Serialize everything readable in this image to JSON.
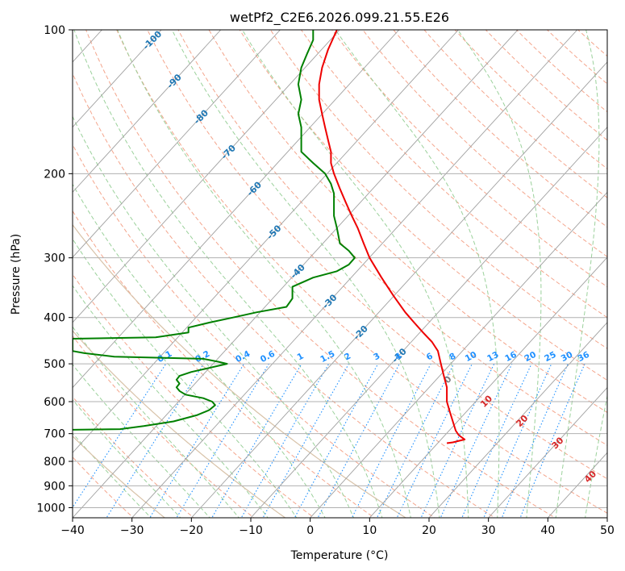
{
  "chart_data": {
    "type": "line",
    "title": "wetPf2_C2E6.2026.099.21.55.E26",
    "xlabel": "Temperature (°C)",
    "ylabel": "Pressure (hPa)",
    "xlim": [
      -40,
      50
    ],
    "ylim": [
      1050,
      100
    ],
    "y_scale": "log",
    "grid": true,
    "x_ticks": [
      -40,
      -30,
      -20,
      -10,
      0,
      10,
      20,
      30,
      40,
      50
    ],
    "x_tick_labels": [
      "−40",
      "−30",
      "−20",
      "−10",
      "0",
      "10",
      "20",
      "30",
      "40",
      "50"
    ],
    "y_ticks": [
      100,
      200,
      300,
      400,
      500,
      600,
      700,
      800,
      900,
      1000
    ],
    "y_tick_labels": [
      "100",
      "200",
      "300",
      "400",
      "500",
      "600",
      "700",
      "800",
      "900",
      "1000"
    ],
    "colors": {
      "temperature": "#ee0000",
      "dewpoint": "#008000",
      "isotherm": "#a0a0a0",
      "dry_adiabat": "#f4a58c",
      "moist_adiabat": "#9bd19b",
      "mixing_ratio": "#1e90ff",
      "isotherm_label": "#1f77b4",
      "moist_label": "#d62728",
      "theta_curve": "#d8c2a8"
    },
    "isotherm_labels": [
      "-100",
      "-90",
      "-80",
      "-70",
      "-60",
      "-50",
      "-40",
      "-30",
      "-20",
      "-10"
    ],
    "moist_adiabat_labels": [
      "0",
      "10",
      "20",
      "30",
      "40"
    ],
    "mixing_ratio_labels": [
      "0.1",
      "0.2",
      "0.4",
      "0.6",
      "1",
      "1.5",
      "2",
      "3",
      "4",
      "6",
      "8",
      "10",
      "13",
      "16",
      "20",
      "25",
      "30",
      "36"
    ],
    "series": [
      {
        "name": "Temperature",
        "points": [
          [
            4.5,
            100
          ],
          [
            3.0,
            110
          ],
          [
            2.0,
            120
          ],
          [
            1.5,
            130
          ],
          [
            1.5,
            140
          ],
          [
            2.0,
            150
          ],
          [
            2.5,
            160
          ],
          [
            3.0,
            170
          ],
          [
            3.5,
            180
          ],
          [
            3.5,
            190
          ],
          [
            4.0,
            200
          ],
          [
            5.0,
            215
          ],
          [
            6.0,
            230
          ],
          [
            7.0,
            245
          ],
          [
            8.0,
            260
          ],
          [
            9.0,
            280
          ],
          [
            10.0,
            300
          ],
          [
            12.0,
            330
          ],
          [
            14.0,
            360
          ],
          [
            16.0,
            390
          ],
          [
            17.5,
            410
          ],
          [
            19.0,
            430
          ],
          [
            20.5,
            450
          ],
          [
            21.5,
            470
          ],
          [
            22.0,
            500
          ],
          [
            22.5,
            530
          ],
          [
            23.0,
            560
          ],
          [
            23.0,
            600
          ],
          [
            23.5,
            630
          ],
          [
            24.0,
            660
          ],
          [
            24.5,
            690
          ],
          [
            25.0,
            705
          ],
          [
            26.0,
            720
          ],
          [
            24.0,
            730
          ],
          [
            23.0,
            733
          ]
        ]
      },
      {
        "name": "Dewpoint",
        "points": [
          [
            0.5,
            100
          ],
          [
            0.5,
            105
          ],
          [
            -0.5,
            112
          ],
          [
            -1.5,
            120
          ],
          [
            -2.0,
            130
          ],
          [
            -1.5,
            140
          ],
          [
            -2.0,
            150
          ],
          [
            -1.5,
            160
          ],
          [
            -1.5,
            170
          ],
          [
            -1.5,
            180
          ],
          [
            0.5,
            190
          ],
          [
            2.5,
            200
          ],
          [
            3.5,
            210
          ],
          [
            4.0,
            220
          ],
          [
            4.0,
            235
          ],
          [
            4.0,
            245
          ],
          [
            4.5,
            260
          ],
          [
            5.0,
            280
          ],
          [
            6.5,
            290
          ],
          [
            7.5,
            300
          ],
          [
            6.5,
            310
          ],
          [
            4.5,
            320
          ],
          [
            0.5,
            330
          ],
          [
            -3.0,
            345
          ],
          [
            -3.0,
            365
          ],
          [
            -4.0,
            380
          ],
          [
            -9.0,
            390
          ],
          [
            -13.0,
            400
          ],
          [
            -17.0,
            410
          ],
          [
            -20.5,
            420
          ],
          [
            -20.5,
            430
          ],
          [
            -26.0,
            440
          ],
          [
            -40.0,
            443
          ],
          [
            -40.0,
            470
          ],
          [
            -38.0,
            475
          ],
          [
            -33.0,
            483
          ],
          [
            -18.0,
            488
          ],
          [
            -15.5,
            495
          ],
          [
            -14.0,
            500
          ],
          [
            -17.0,
            510
          ],
          [
            -20.0,
            520
          ],
          [
            -22.0,
            530
          ],
          [
            -22.5,
            540
          ],
          [
            -22.0,
            550
          ],
          [
            -22.5,
            560
          ],
          [
            -22.0,
            570
          ],
          [
            -21.0,
            580
          ],
          [
            -18.0,
            590
          ],
          [
            -16.5,
            600
          ],
          [
            -16.0,
            610
          ],
          [
            -17.0,
            625
          ],
          [
            -19.0,
            640
          ],
          [
            -23.0,
            660
          ],
          [
            -28.0,
            675
          ],
          [
            -32.0,
            685
          ],
          [
            -40.0,
            687
          ]
        ]
      }
    ]
  }
}
